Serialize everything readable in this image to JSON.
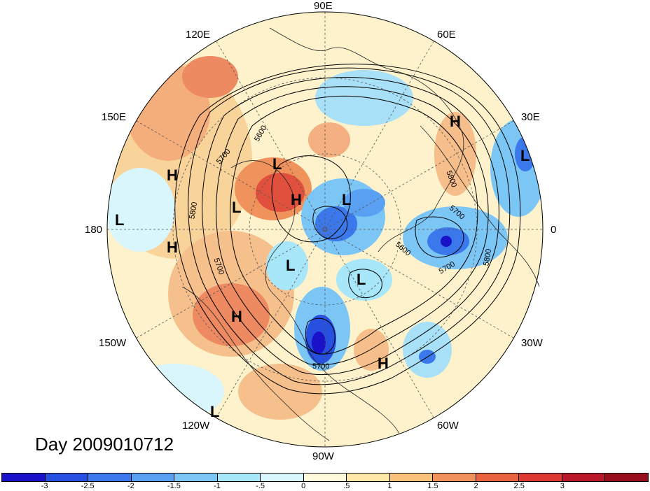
{
  "title": "Day 2009010712",
  "map": {
    "projection": "north polar stereographic",
    "field_shading": "anomaly",
    "contour_interval": 50
  },
  "longitude_labels": [
    "90E",
    "120E",
    "60E",
    "150E",
    "30E",
    "180",
    "0",
    "150W",
    "30W",
    "120W",
    "60W",
    "90W"
  ],
  "contour_labels": [
    "5600",
    "5700",
    "5800",
    "5700",
    "5800",
    "5700",
    "5600",
    "5700",
    "5800",
    "5700",
    "5800"
  ],
  "pressure_centers": [
    {
      "type": "H"
    },
    {
      "type": "L"
    },
    {
      "type": "H"
    },
    {
      "type": "L"
    },
    {
      "type": "H"
    },
    {
      "type": "L"
    },
    {
      "type": "L"
    },
    {
      "type": "L"
    },
    {
      "type": "H"
    },
    {
      "type": "L"
    },
    {
      "type": "L"
    },
    {
      "type": "H"
    },
    {
      "type": "L"
    },
    {
      "type": "H"
    },
    {
      "type": "H"
    },
    {
      "type": "L"
    }
  ],
  "colorbar": {
    "colors": [
      "#1a12c8",
      "#2850e0",
      "#3b78ec",
      "#5aa0f2",
      "#7cc6f6",
      "#a8e6fa",
      "#d8f6fc",
      "#fffadc",
      "#fde8a8",
      "#f8c27a",
      "#f0925c",
      "#e8643e",
      "#dc3a30",
      "#b8182a",
      "#960e1e"
    ],
    "tick_labels": [
      "-3",
      "-2.5",
      "-2",
      "-1.5",
      "-1",
      "-.5",
      "0",
      ".5",
      "1",
      "1.5",
      "2",
      "2.5",
      "3"
    ]
  }
}
